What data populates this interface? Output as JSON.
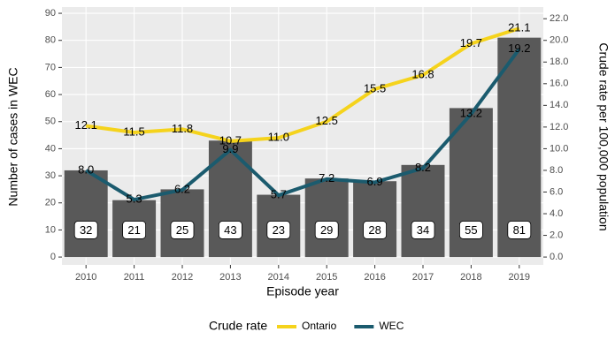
{
  "chart_data": {
    "type": "bar_line",
    "categories": [
      "2010",
      "2011",
      "2012",
      "2013",
      "2014",
      "2015",
      "2016",
      "2017",
      "2018",
      "2019"
    ],
    "values": [
      32,
      21,
      25,
      43,
      23,
      29,
      28,
      34,
      55,
      81
    ],
    "color": "#595959",
    "label_level": 10,
    "series": [
      {
        "name": "Ontario",
        "color": "#f5d31c",
        "axis": "y2",
        "values": [
          12.1,
          11.5,
          11.8,
          10.7,
          11.0,
          12.5,
          15.5,
          16.8,
          19.7,
          21.1
        ],
        "value_labels": [
          "12.1",
          "11.5",
          "11.8",
          "10.7",
          "11.0",
          "12.5",
          "15.5",
          "16.8",
          "19.7",
          "21.1"
        ]
      },
      {
        "name": "WEC",
        "color": "#1b5b6e",
        "axis": "y2",
        "values": [
          8.0,
          5.3,
          6.2,
          9.9,
          5.7,
          7.2,
          6.9,
          8.2,
          13.2,
          19.2
        ],
        "value_labels": [
          "8.0",
          "5.3",
          "6.2",
          "9.9",
          "5.7",
          "7.2",
          "6.9",
          "8.2",
          "13.2",
          "19.2"
        ]
      }
    ],
    "x_label": "Episode year",
    "y_label": "Number of cases in WEC",
    "y2_label": "Crude rate per 100,000 population",
    "legend_title": "Crude rate",
    "legend": "bottom",
    "grid": true,
    "ylim": [
      -2.9,
      92.3
    ],
    "yticks": [
      0,
      10,
      20,
      30,
      40,
      50,
      60,
      70,
      80,
      90
    ],
    "y2lim": [
      -0.725,
      23.075
    ],
    "y2ticks": [
      {
        "value": 0,
        "label": "0.0"
      },
      {
        "value": 2,
        "label": "2.0"
      },
      {
        "value": 4,
        "label": "4.0"
      },
      {
        "value": 6,
        "label": "6.0"
      },
      {
        "value": 8,
        "label": "8.0"
      },
      {
        "value": 10,
        "label": "10.0"
      },
      {
        "value": 12,
        "label": "12.0"
      },
      {
        "value": 14,
        "label": "14.0"
      },
      {
        "value": 16,
        "label": "16.0"
      },
      {
        "value": 18,
        "label": "18.0"
      },
      {
        "value": 20,
        "label": "20.0"
      },
      {
        "value": 22,
        "label": "22.0"
      }
    ]
  }
}
